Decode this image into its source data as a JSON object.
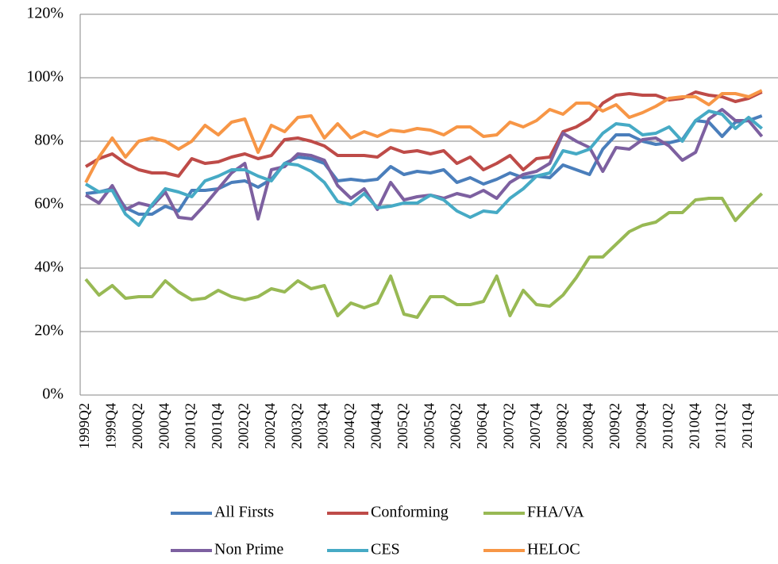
{
  "chart_data": {
    "type": "line",
    "categories": [
      "1999Q2",
      null,
      "1999Q4",
      null,
      "2000Q2",
      null,
      "2000Q4",
      null,
      "2001Q2",
      null,
      "2001Q4",
      null,
      "2002Q2",
      null,
      "2002Q4",
      null,
      "2003Q2",
      null,
      "2003Q4",
      null,
      "2004Q2",
      null,
      "2004Q4",
      null,
      "2005Q2",
      null,
      "2005Q4",
      null,
      "2006Q2",
      null,
      "2006Q4",
      null,
      "2007Q2",
      null,
      "2007Q4",
      null,
      "2008Q2",
      null,
      "2008Q4",
      null,
      "2009Q2",
      null,
      "2009Q4",
      null,
      "2010Q2",
      null,
      "2010Q4",
      null,
      "2011Q2",
      null,
      "2011Q4",
      null
    ],
    "series": [
      {
        "name": "All Firsts",
        "color": "#4a7ebb",
        "values": [
          63.5,
          64,
          65,
          59,
          57,
          57,
          59.5,
          58,
          64.5,
          64.5,
          65,
          67,
          67.5,
          65.5,
          68,
          73,
          75,
          74.5,
          73,
          67.5,
          68,
          67.5,
          68,
          72,
          69.5,
          70.5,
          70,
          71,
          67,
          68.5,
          66.5,
          68,
          70,
          68.5,
          69,
          68.5,
          72.5,
          71,
          69.5,
          77.5,
          82,
          82,
          80,
          79,
          79.5,
          80.5,
          86.5,
          86,
          81.5,
          86,
          86.5,
          88
        ]
      },
      {
        "name": "Conforming",
        "color": "#be4b48",
        "values": [
          72,
          74.5,
          76,
          73,
          71,
          70,
          70,
          69,
          74.5,
          73,
          73.5,
          75,
          76,
          74.5,
          75.5,
          80.5,
          81,
          80,
          78.5,
          75.5,
          75.5,
          75.5,
          75,
          78,
          76.5,
          77,
          76,
          77,
          73,
          75,
          71,
          73,
          75.5,
          71,
          74.5,
          75,
          83,
          84.5,
          87,
          92,
          94.5,
          95,
          94.5,
          94.5,
          93,
          93.5,
          95.5,
          94.5,
          94,
          92.5,
          93.5,
          95.5
        ]
      },
      {
        "name": "FHA/VA",
        "color": "#98b954",
        "values": [
          36.5,
          31.5,
          34.5,
          30.5,
          31,
          31,
          36,
          32.5,
          30,
          30.5,
          33,
          31,
          30,
          31,
          33.5,
          32.5,
          36,
          33.5,
          34.5,
          25,
          29,
          27.5,
          29,
          37.5,
          25.5,
          24.5,
          31,
          31,
          28.5,
          28.5,
          29.5,
          37.5,
          25,
          33,
          28.5,
          28,
          31.5,
          37,
          43.5,
          43.5,
          47.5,
          51.5,
          53.5,
          54.5,
          57.5,
          57.5,
          61.5,
          62,
          62,
          55,
          59.5,
          63.5
        ]
      },
      {
        "name": "Non Prime",
        "color": "#7d60a0",
        "values": [
          63,
          60.5,
          66,
          58.5,
          60.5,
          59.5,
          64,
          56,
          55.5,
          60,
          65,
          70,
          73,
          55.5,
          71,
          72,
          76,
          75.5,
          74,
          66,
          62,
          65,
          58.5,
          67,
          61.5,
          62.5,
          63,
          62,
          63.5,
          62.5,
          64.5,
          62,
          67,
          69.5,
          70.5,
          73,
          82.5,
          80,
          78,
          70.5,
          78,
          77.5,
          80.5,
          81,
          78.5,
          74,
          76.5,
          87,
          90,
          86.5,
          86.5,
          81.5
        ]
      },
      {
        "name": "CES",
        "color": "#46aac5",
        "values": [
          66.5,
          64,
          64.5,
          57,
          53.5,
          60,
          65,
          64,
          62.5,
          67.5,
          69,
          71,
          71,
          69,
          67.5,
          73,
          72.5,
          70.5,
          67,
          61,
          60,
          63.5,
          59,
          59.5,
          60.5,
          60.5,
          63,
          61.5,
          58,
          56,
          58,
          57.5,
          62,
          65,
          69,
          70,
          77,
          76,
          77.5,
          82.5,
          85.5,
          85,
          82,
          82.5,
          84.5,
          80,
          86.5,
          89.5,
          88.5,
          84,
          87.5,
          84
        ]
      },
      {
        "name": "HELOC",
        "color": "#f79646",
        "values": [
          67,
          75,
          81,
          75,
          80,
          81,
          80,
          77.5,
          80,
          85,
          82,
          86,
          87,
          76.5,
          85,
          83,
          87.5,
          88,
          81,
          85.5,
          81,
          83,
          81.5,
          83.5,
          83,
          84,
          83.5,
          82,
          84.5,
          84.5,
          81.5,
          82,
          86,
          84.5,
          86.5,
          90,
          88.5,
          92,
          92,
          89.5,
          91.5,
          87.5,
          89,
          91,
          93.5,
          94,
          94,
          91.5,
          95,
          95,
          94,
          96
        ]
      }
    ],
    "ylim": [
      0,
      120
    ],
    "yticks": [
      {
        "value": 0,
        "label": "0%"
      },
      {
        "value": 20,
        "label": "20%"
      },
      {
        "value": 40,
        "label": "40%"
      },
      {
        "value": 60,
        "label": "60%"
      },
      {
        "value": 80,
        "label": "80%"
      },
      {
        "value": 100,
        "label": "100%"
      },
      {
        "value": 120,
        "label": "120%"
      }
    ],
    "grid": true,
    "legend": "bottom"
  }
}
